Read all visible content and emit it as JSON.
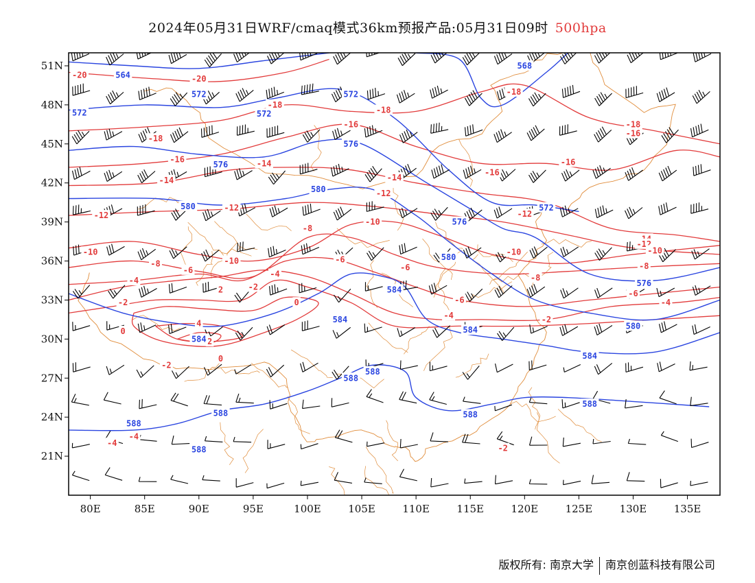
{
  "title": {
    "main": "2024年05月31日WRF/cmaq模式36km预报产品:05月31日09时",
    "level": "500hpa",
    "level_color": "#e23b3b"
  },
  "axes": {
    "x_ticks": [
      "80E",
      "85E",
      "90E",
      "95E",
      "100E",
      "105E",
      "110E",
      "115E",
      "120E",
      "125E",
      "130E",
      "135E"
    ],
    "x_values": [
      80,
      85,
      90,
      95,
      100,
      105,
      110,
      115,
      120,
      125,
      130,
      135
    ],
    "y_ticks": [
      "51N",
      "48N",
      "45N",
      "42N",
      "39N",
      "36N",
      "33N",
      "30N",
      "27N",
      "24N",
      "21N"
    ],
    "y_values": [
      51,
      48,
      45,
      42,
      39,
      36,
      33,
      30,
      27,
      24,
      21
    ],
    "lon_range": [
      78,
      138
    ],
    "lat_range": [
      18,
      52
    ]
  },
  "colors": {
    "height_contour": "#2a45e0",
    "temperature_contour": "#e23b3b",
    "boundary": "#e08c3a",
    "wind_barb": "#000000"
  },
  "height_contours": [
    {
      "label": "564",
      "points": [
        [
          78,
          51.3
        ],
        [
          84,
          51.0
        ],
        [
          90,
          50.8
        ],
        [
          96,
          51.4
        ],
        [
          102,
          52.0
        ]
      ],
      "labels": [
        [
          83,
          50.3
        ]
      ]
    },
    {
      "label": "568",
      "points": [
        [
          110,
          52.0
        ],
        [
          114,
          51.5
        ],
        [
          116,
          48.5
        ],
        [
          118,
          48.0
        ],
        [
          122,
          50.5
        ],
        [
          124,
          52.0
        ]
      ],
      "labels": [
        [
          120,
          51.0
        ]
      ]
    },
    {
      "label": "572",
      "points": [
        [
          78,
          47.6
        ],
        [
          85,
          48.0
        ],
        [
          92,
          47.8
        ],
        [
          97,
          48.5
        ],
        [
          103,
          49.2
        ],
        [
          108,
          47.0
        ],
        [
          113,
          43.0
        ],
        [
          117,
          40.5
        ],
        [
          121,
          40.3
        ],
        [
          125,
          39.8
        ]
      ],
      "labels": [
        [
          79,
          47.4
        ],
        [
          90,
          48.8
        ],
        [
          96,
          47.3
        ],
        [
          104,
          48.8
        ],
        [
          122,
          40.1
        ]
      ]
    },
    {
      "label": "576",
      "points": [
        [
          78,
          44.5
        ],
        [
          84,
          44.8
        ],
        [
          90,
          44.2
        ],
        [
          96,
          44.0
        ],
        [
          101,
          45.2
        ],
        [
          105,
          45.0
        ],
        [
          111,
          42.0
        ],
        [
          115,
          40.0
        ],
        [
          118,
          38.5
        ],
        [
          121,
          37.8
        ],
        [
          126,
          35.0
        ],
        [
          132,
          34.5
        ],
        [
          138,
          35.5
        ]
      ],
      "labels": [
        [
          92,
          43.4
        ],
        [
          104,
          45.0
        ],
        [
          114,
          39.0
        ],
        [
          131,
          34.3
        ]
      ]
    },
    {
      "label": "580",
      "points": [
        [
          78,
          40.8
        ],
        [
          86,
          40.8
        ],
        [
          92,
          40.3
        ],
        [
          98,
          40.8
        ],
        [
          102,
          41.5
        ],
        [
          106,
          41.5
        ],
        [
          110,
          39.5
        ],
        [
          113,
          37.5
        ],
        [
          117,
          35.0
        ],
        [
          121,
          33.0
        ],
        [
          126,
          32.0
        ],
        [
          132,
          31.5
        ],
        [
          138,
          33.0
        ]
      ],
      "labels": [
        [
          89,
          40.2
        ],
        [
          101,
          41.5
        ],
        [
          113,
          36.3
        ],
        [
          130,
          31.0
        ]
      ]
    },
    {
      "label": "584",
      "points": [
        [
          78,
          33.5
        ],
        [
          83,
          32.0
        ],
        [
          88,
          31.2
        ],
        [
          92,
          31.0
        ],
        [
          97,
          32.0
        ],
        [
          101,
          33.5
        ],
        [
          104,
          35.0
        ],
        [
          107,
          34.8
        ],
        [
          109,
          34.0
        ],
        [
          111,
          31.5
        ],
        [
          114,
          30.5
        ],
        [
          118,
          30.0
        ],
        [
          122,
          29.5
        ],
        [
          126,
          29.0
        ],
        [
          132,
          29.0
        ],
        [
          138,
          30.5
        ]
      ],
      "labels": [
        [
          90,
          30.0
        ],
        [
          103,
          31.5
        ],
        [
          108,
          33.8
        ],
        [
          115,
          30.7
        ],
        [
          126,
          28.7
        ]
      ]
    },
    {
      "label": "588",
      "points": [
        [
          78,
          23.0
        ],
        [
          84,
          23.0
        ],
        [
          88,
          23.5
        ],
        [
          92,
          24.5
        ],
        [
          96,
          25.0
        ],
        [
          100,
          26.0
        ],
        [
          103,
          27.0
        ],
        [
          106,
          28.0
        ],
        [
          109,
          27.5
        ],
        [
          110,
          25.5
        ],
        [
          113,
          24.5
        ],
        [
          117,
          25.0
        ],
        [
          120,
          25.5
        ],
        [
          124,
          25.5
        ],
        [
          130,
          25.2
        ],
        [
          137,
          24.8
        ]
      ],
      "labels": [
        [
          84,
          23.5
        ],
        [
          92,
          24.3
        ],
        [
          104,
          27.0
        ],
        [
          106,
          27.5
        ],
        [
          115,
          24.2
        ],
        [
          126,
          25.0
        ],
        [
          90,
          21.5
        ]
      ]
    }
  ],
  "temperature_contours": [
    {
      "label": "-20",
      "points": [
        [
          78,
          50.5
        ],
        [
          86,
          50.0
        ],
        [
          92,
          49.8
        ],
        [
          98,
          50.5
        ],
        [
          102,
          51.5
        ]
      ],
      "labels": [
        [
          79,
          50.3
        ],
        [
          90,
          50.0
        ]
      ]
    },
    {
      "label": "-18",
      "points": [
        [
          78,
          46.0
        ],
        [
          85,
          46.3
        ],
        [
          92,
          46.8
        ],
        [
          98,
          48.0
        ],
        [
          104,
          47.5
        ],
        [
          110,
          47.5
        ],
        [
          116,
          49.0
        ],
        [
          120,
          49.5
        ],
        [
          126,
          47.0
        ],
        [
          132,
          46.0
        ],
        [
          138,
          45.0
        ]
      ],
      "labels": [
        [
          86,
          45.4
        ],
        [
          97,
          48.0
        ],
        [
          107,
          47.6
        ],
        [
          119,
          49.0
        ],
        [
          130,
          46.5
        ]
      ]
    },
    {
      "label": "-16",
      "points": [
        [
          78,
          43.2
        ],
        [
          85,
          43.5
        ],
        [
          92,
          44.2
        ],
        [
          98,
          45.5
        ],
        [
          104,
          46.5
        ],
        [
          110,
          44.8
        ],
        [
          116,
          43.5
        ],
        [
          122,
          43.5
        ],
        [
          128,
          43.0
        ],
        [
          134,
          44.5
        ],
        [
          138,
          44.0
        ]
      ],
      "labels": [
        [
          88,
          43.8
        ],
        [
          104,
          46.5
        ],
        [
          117,
          42.8
        ],
        [
          124,
          43.6
        ],
        [
          130,
          45.8
        ]
      ]
    },
    {
      "label": "-14",
      "points": [
        [
          78,
          41.8
        ],
        [
          86,
          42.0
        ],
        [
          93,
          43.0
        ],
        [
          99,
          43.2
        ],
        [
          104,
          43.0
        ],
        [
          110,
          42.0
        ],
        [
          116,
          41.2
        ],
        [
          122,
          40.5
        ],
        [
          128,
          38.5
        ],
        [
          134,
          38.0
        ],
        [
          138,
          37.5
        ]
      ],
      "labels": [
        [
          87,
          42.2
        ],
        [
          96,
          43.5
        ],
        [
          108,
          42.4
        ],
        [
          131,
          37.7
        ]
      ]
    },
    {
      "label": "-12",
      "points": [
        [
          78,
          39.5
        ],
        [
          86,
          39.8
        ],
        [
          93,
          40.0
        ],
        [
          100,
          40.5
        ],
        [
          106,
          40.2
        ],
        [
          112,
          39.6
        ],
        [
          118,
          39.0
        ],
        [
          124,
          38.0
        ],
        [
          130,
          37.0
        ],
        [
          138,
          36.5
        ]
      ],
      "labels": [
        [
          81,
          39.5
        ],
        [
          93,
          40.1
        ],
        [
          107,
          41.2
        ],
        [
          120,
          39.6
        ],
        [
          131,
          37.3
        ]
      ]
    },
    {
      "label": "-10",
      "points": [
        [
          78,
          37.0
        ],
        [
          84,
          37.5
        ],
        [
          90,
          36.5
        ],
        [
          95,
          36.0
        ],
        [
          100,
          37.0
        ],
        [
          104,
          38.8
        ],
        [
          108,
          39.0
        ],
        [
          112,
          38.0
        ],
        [
          117,
          36.5
        ],
        [
          123,
          35.8
        ],
        [
          130,
          36.5
        ],
        [
          138,
          37.2
        ]
      ],
      "labels": [
        [
          80,
          36.7
        ],
        [
          93,
          36.0
        ],
        [
          106,
          39.0
        ],
        [
          119,
          36.7
        ],
        [
          132,
          36.8
        ]
      ]
    },
    {
      "label": "-8",
      "points": [
        [
          78,
          35.5
        ],
        [
          84,
          36.0
        ],
        [
          90,
          35.2
        ],
        [
          95,
          34.8
        ],
        [
          100,
          37.8
        ],
        [
          104,
          37.8
        ],
        [
          108,
          36.5
        ],
        [
          112,
          35.5
        ],
        [
          118,
          35.0
        ],
        [
          124,
          35.2
        ],
        [
          130,
          35.5
        ],
        [
          138,
          35.8
        ]
      ],
      "labels": [
        [
          86,
          35.8
        ],
        [
          100,
          38.5
        ],
        [
          121,
          34.7
        ],
        [
          131,
          35.6
        ]
      ]
    },
    {
      "label": "-6",
      "points": [
        [
          78,
          34.2
        ],
        [
          84,
          34.5
        ],
        [
          90,
          35.0
        ],
        [
          94,
          34.5
        ],
        [
          98,
          36.0
        ],
        [
          102,
          36.2
        ],
        [
          106,
          35.2
        ],
        [
          110,
          34.0
        ],
        [
          114,
          33.0
        ],
        [
          120,
          32.5
        ],
        [
          126,
          33.0
        ],
        [
          132,
          33.5
        ],
        [
          138,
          34.0
        ]
      ],
      "labels": [
        [
          89,
          35.3
        ],
        [
          103,
          36.1
        ],
        [
          109,
          35.5
        ],
        [
          114,
          33.0
        ],
        [
          130,
          33.5
        ]
      ]
    },
    {
      "label": "-4",
      "points": [
        [
          78,
          33.0
        ],
        [
          83,
          34.0
        ],
        [
          88,
          34.5
        ],
        [
          92,
          34.8
        ],
        [
          96,
          35.3
        ],
        [
          100,
          34.8
        ],
        [
          104,
          33.5
        ],
        [
          108,
          32.0
        ],
        [
          112,
          31.5
        ],
        [
          116,
          31.5
        ],
        [
          122,
          31.5
        ],
        [
          128,
          32.5
        ],
        [
          134,
          32.8
        ],
        [
          138,
          33.2
        ]
      ],
      "labels": [
        [
          84,
          34.5
        ],
        [
          97,
          35.0
        ],
        [
          113,
          31.8
        ],
        [
          133,
          32.8
        ],
        [
          84,
          22.5
        ],
        [
          82,
          22.0
        ]
      ]
    },
    {
      "label": "-2",
      "points": [
        [
          78,
          32.0
        ],
        [
          82,
          32.5
        ],
        [
          86,
          33.0
        ],
        [
          90,
          33.0
        ],
        [
          94,
          33.0
        ],
        [
          97,
          34.5
        ],
        [
          100,
          34.0
        ],
        [
          104,
          32.8
        ],
        [
          108,
          31.0
        ],
        [
          114,
          31.0
        ],
        [
          120,
          31.0
        ],
        [
          126,
          31.2
        ],
        [
          132,
          31.5
        ],
        [
          138,
          31.8
        ]
      ],
      "labels": [
        [
          83,
          32.8
        ],
        [
          95,
          34.0
        ],
        [
          122,
          31.5
        ],
        [
          87,
          28.0
        ],
        [
          118,
          21.6
        ]
      ]
    },
    {
      "label": "0",
      "points": [
        [
          84,
          32.0
        ],
        [
          87,
          32.5
        ],
        [
          91,
          32.3
        ],
        [
          95,
          32.2
        ],
        [
          98,
          33.2
        ],
        [
          101,
          32.8
        ],
        [
          99,
          31.5
        ],
        [
          95,
          30.2
        ],
        [
          92,
          29.5
        ],
        [
          89,
          29.5
        ],
        [
          86,
          30.0
        ],
        [
          84,
          31.0
        ],
        [
          84,
          32.0
        ]
      ],
      "labels": [
        [
          99,
          32.8
        ],
        [
          83,
          30.6
        ],
        [
          92,
          28.5
        ]
      ]
    },
    {
      "label": "2",
      "points": [
        [
          86,
          31.0
        ],
        [
          89,
          31.2
        ],
        [
          92,
          31.0
        ],
        [
          94,
          30.2
        ],
        [
          91,
          29.8
        ],
        [
          88,
          30.0
        ],
        [
          86,
          31.0
        ]
      ],
      "labels": [
        [
          92,
          33.8
        ],
        [
          91,
          29.8
        ]
      ]
    },
    {
      "label": "4",
      "points": [
        [
          88,
          30.0
        ],
        [
          90,
          30.5
        ],
        [
          92,
          30.3
        ],
        [
          91,
          29.7
        ],
        [
          88,
          30.0
        ]
      ],
      "labels": [
        [
          90,
          31.2
        ]
      ]
    }
  ],
  "wind_barbs": {
    "lon_start": 80,
    "lon_step": 3,
    "lat_start": 19,
    "lat_step": 3
  }
}
